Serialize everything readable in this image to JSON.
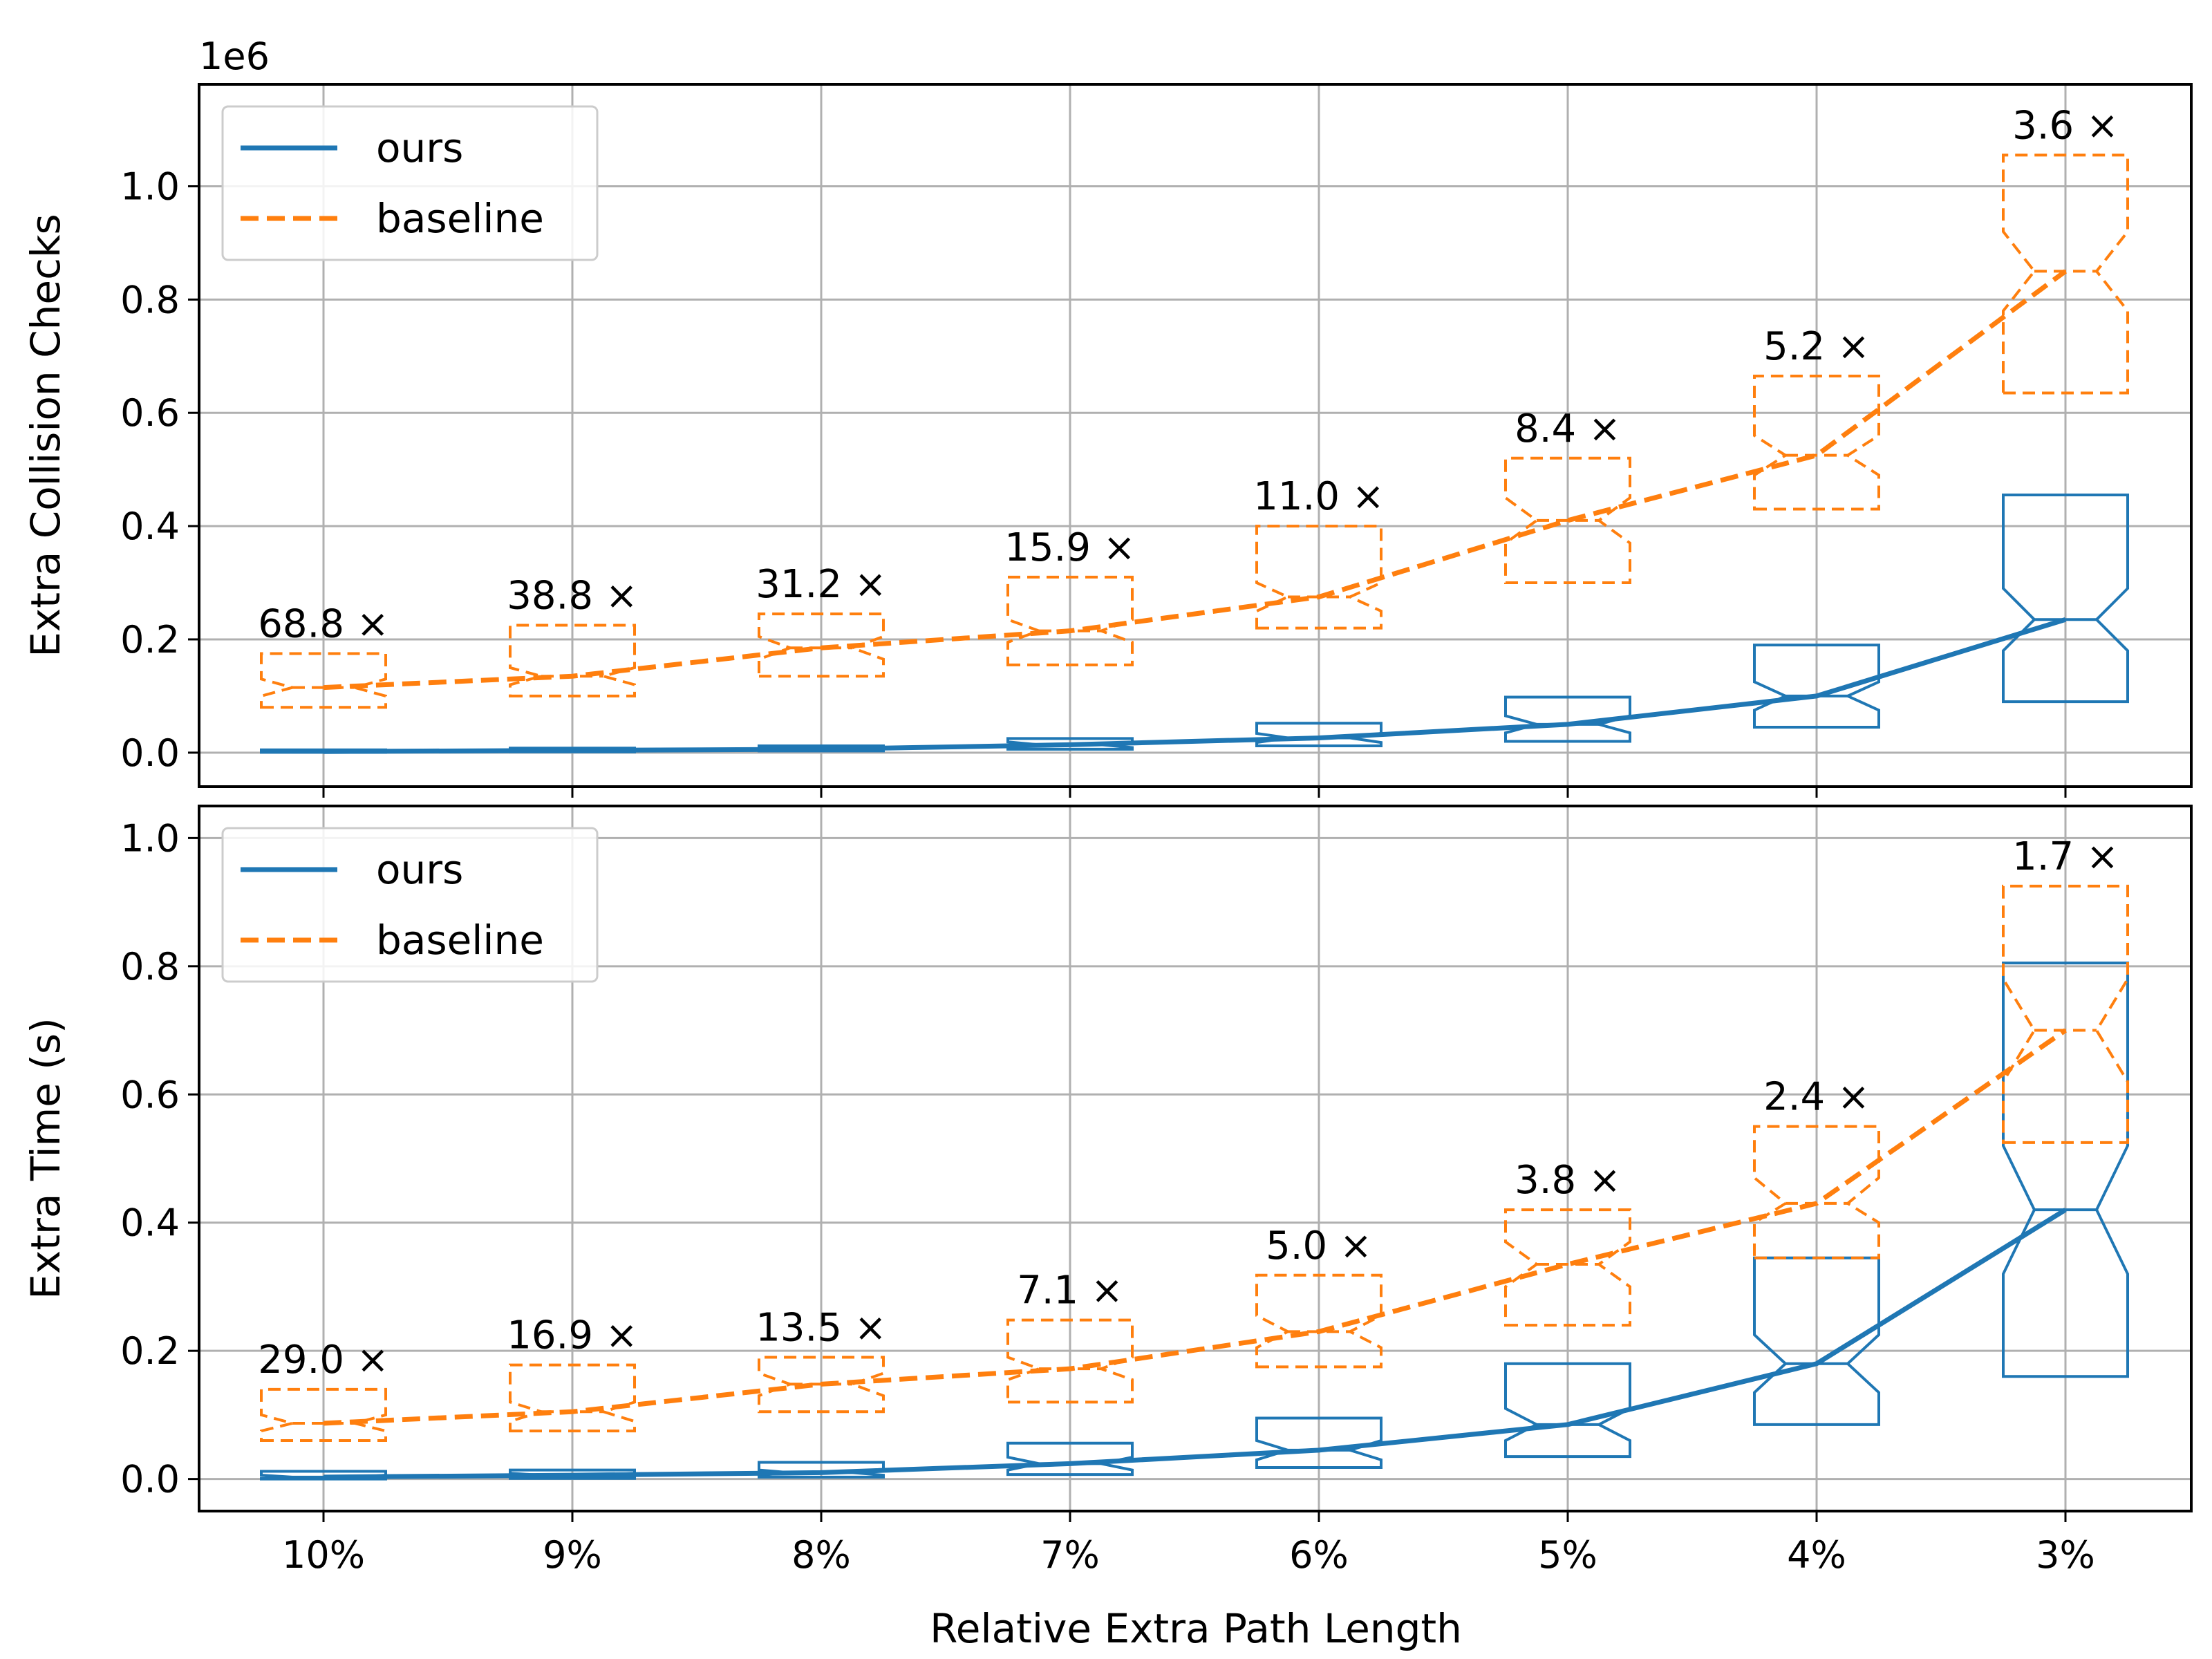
{
  "chart_data": {
    "type": "box-line",
    "xlabel": "Relative Extra Path Length",
    "categories": [
      "10%",
      "9%",
      "8%",
      "7%",
      "6%",
      "5%",
      "4%",
      "3%"
    ],
    "colors": {
      "ours": "#1f77b4",
      "baseline": "#ff7f0e",
      "grid": "#b0b0b0"
    },
    "panels": [
      {
        "ylabel": "Extra Collision Checks",
        "offset_text": "1e6",
        "scale": 1000000,
        "ylim": [
          -0.06,
          1.18
        ],
        "yticks": [
          0.0,
          0.2,
          0.4,
          0.6,
          0.8,
          1.0
        ],
        "grid": true,
        "legend": {
          "location": "top-left",
          "entries": [
            "ours",
            "baseline"
          ]
        },
        "ratio_labels": [
          "68.8 ×",
          "38.8 ×",
          "31.2 ×",
          "15.9 ×",
          "11.0 ×",
          "8.4 ×",
          "5.2 ×",
          "3.6 ×"
        ],
        "series": [
          {
            "name": "ours",
            "median": [
              0.002,
              0.004,
              0.006,
              0.014,
              0.026,
              0.05,
              0.1,
              0.235
            ],
            "q1": [
              0.0005,
              0.0015,
              0.003,
              0.006,
              0.012,
              0.02,
              0.045,
              0.09
            ],
            "q3": [
              0.005,
              0.008,
              0.012,
              0.025,
              0.052,
              0.098,
              0.19,
              0.455
            ],
            "notch_low": [
              0.001,
              0.0025,
              0.0045,
              0.009,
              0.018,
              0.035,
              0.075,
              0.18
            ],
            "notch_high": [
              0.003,
              0.0055,
              0.0075,
              0.019,
              0.034,
              0.065,
              0.125,
              0.29
            ]
          },
          {
            "name": "baseline",
            "median": [
              0.115,
              0.135,
              0.185,
              0.215,
              0.275,
              0.41,
              0.525,
              0.85
            ],
            "q1": [
              0.08,
              0.1,
              0.135,
              0.155,
              0.22,
              0.3,
              0.43,
              0.635
            ],
            "q3": [
              0.175,
              0.225,
              0.245,
              0.31,
              0.4,
              0.52,
              0.665,
              1.055
            ],
            "notch_low": [
              0.1,
              0.12,
              0.165,
              0.195,
              0.25,
              0.37,
              0.49,
              0.78
            ],
            "notch_high": [
              0.13,
              0.15,
              0.205,
              0.235,
              0.3,
              0.45,
              0.56,
              0.92
            ]
          }
        ]
      },
      {
        "ylabel": "Extra Time (s)",
        "offset_text": "",
        "scale": 1,
        "ylim": [
          -0.05,
          1.05
        ],
        "yticks": [
          0.0,
          0.2,
          0.4,
          0.6,
          0.8,
          1.0
        ],
        "grid": true,
        "legend": {
          "location": "top-left",
          "entries": [
            "ours",
            "baseline"
          ]
        },
        "ratio_labels": [
          "29.0 ×",
          "16.9 ×",
          "13.5 ×",
          "7.1 ×",
          "5.0 ×",
          "3.8 ×",
          "2.4 ×",
          "1.7 ×"
        ],
        "series": [
          {
            "name": "ours",
            "median": [
              0.003,
              0.006,
              0.01,
              0.024,
              0.045,
              0.085,
              0.18,
              0.42
            ],
            "q1": [
              0.0,
              0.001,
              0.003,
              0.007,
              0.018,
              0.035,
              0.085,
              0.16
            ],
            "q3": [
              0.012,
              0.014,
              0.026,
              0.056,
              0.095,
              0.18,
              0.345,
              0.805
            ],
            "notch_low": [
              0.001,
              0.003,
              0.006,
              0.014,
              0.03,
              0.06,
              0.135,
              0.32
            ],
            "notch_high": [
              0.006,
              0.009,
              0.014,
              0.034,
              0.06,
              0.11,
              0.225,
              0.52
            ]
          },
          {
            "name": "baseline",
            "median": [
              0.087,
              0.105,
              0.148,
              0.172,
              0.23,
              0.335,
              0.43,
              0.7
            ],
            "q1": [
              0.06,
              0.075,
              0.105,
              0.12,
              0.175,
              0.24,
              0.345,
              0.525
            ],
            "q3": [
              0.14,
              0.178,
              0.19,
              0.248,
              0.318,
              0.42,
              0.55,
              0.925
            ],
            "notch_low": [
              0.075,
              0.09,
              0.13,
              0.155,
              0.205,
              0.3,
              0.4,
              0.62
            ],
            "notch_high": [
              0.1,
              0.12,
              0.165,
              0.19,
              0.255,
              0.37,
              0.47,
              0.78
            ]
          }
        ]
      }
    ]
  }
}
